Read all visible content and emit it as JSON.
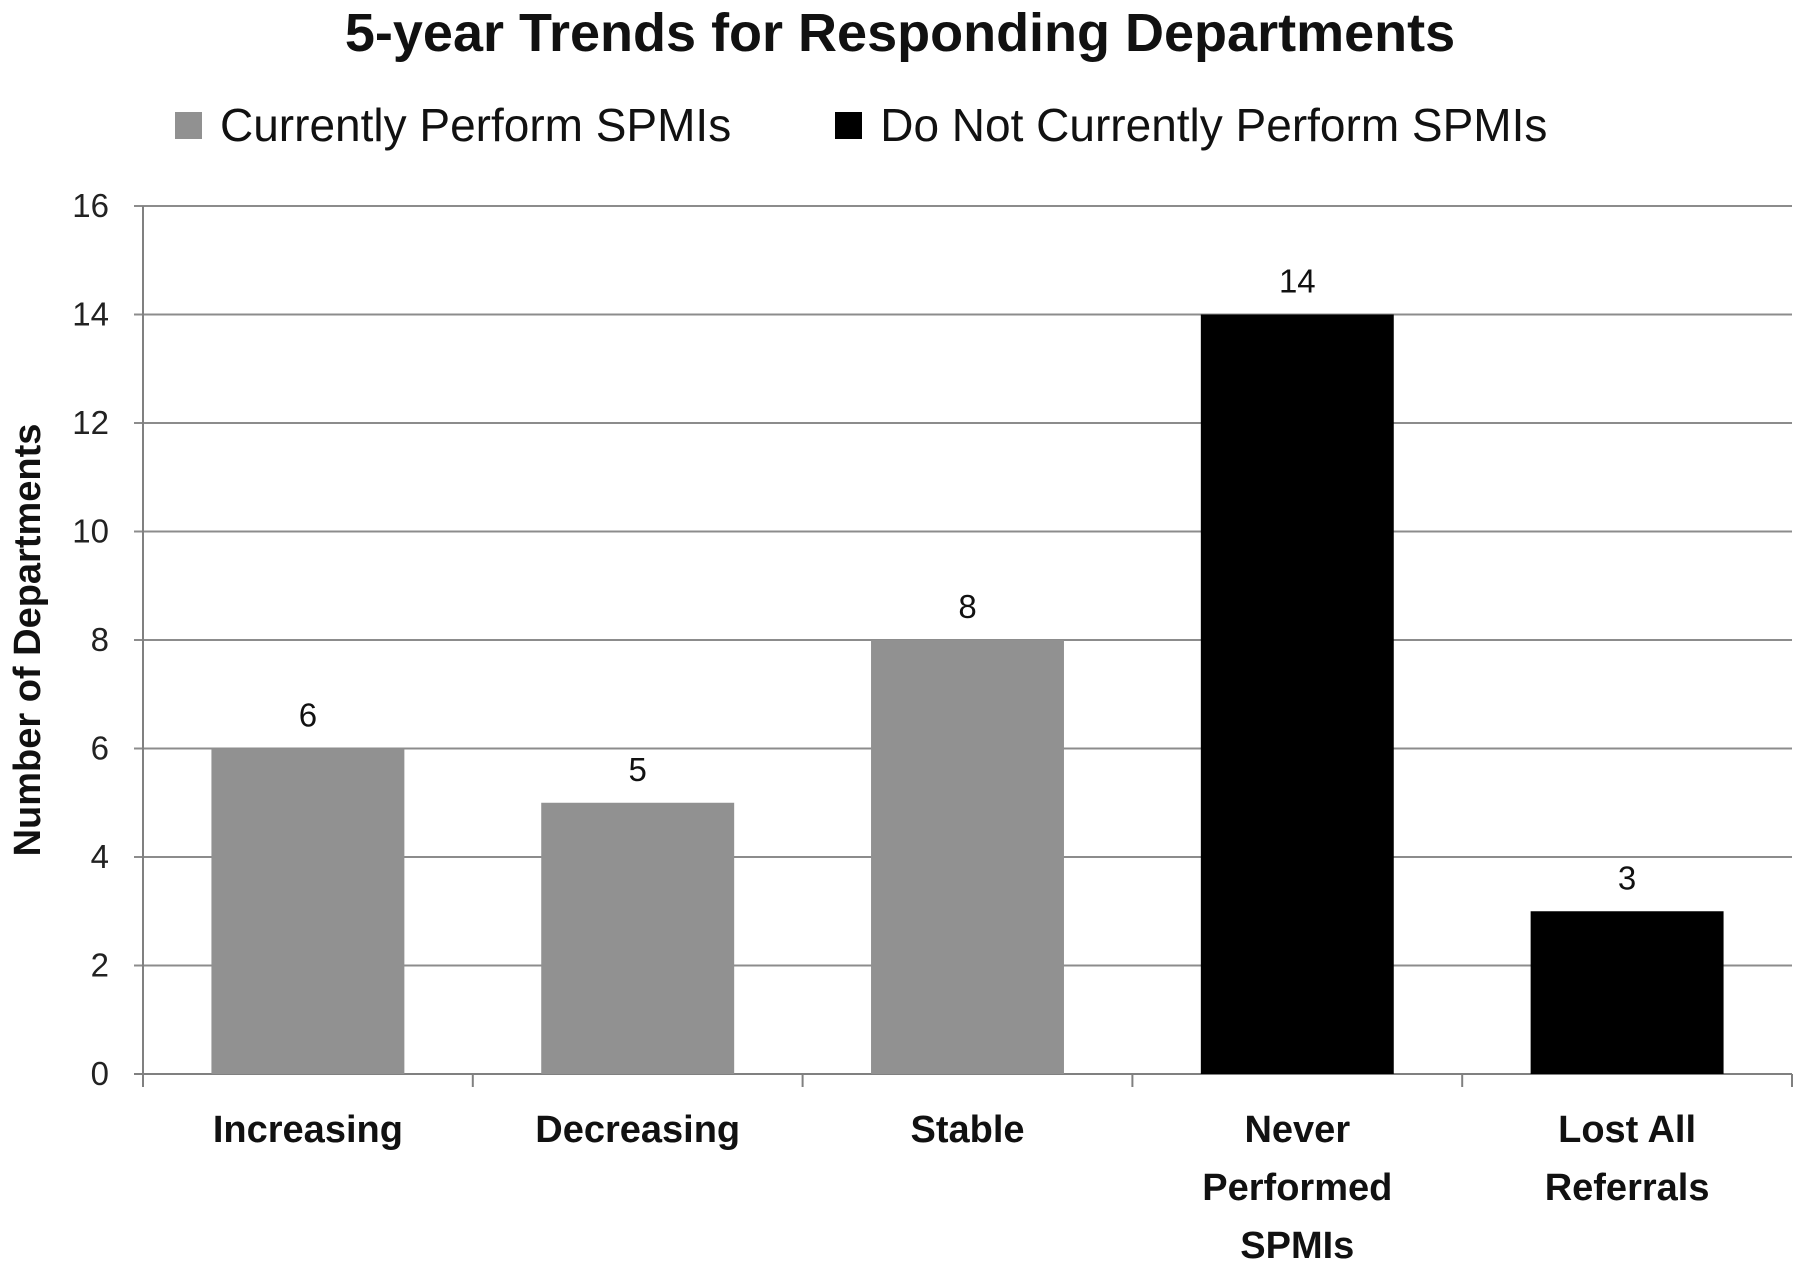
{
  "chart_data": {
    "type": "bar",
    "title": "5-year Trends for Responding Departments",
    "xlabel": "",
    "ylabel": "Number of Departments",
    "ylim": [
      0,
      16
    ],
    "yticks": [
      0,
      2,
      4,
      6,
      8,
      10,
      12,
      14,
      16
    ],
    "grid": true,
    "legend_position": "top",
    "categories": [
      [
        "Increasing"
      ],
      [
        "Decreasing"
      ],
      [
        "Stable"
      ],
      [
        "Never",
        "Performed",
        "SPMIs"
      ],
      [
        "Lost All",
        "Referrals"
      ]
    ],
    "values": [
      6,
      5,
      8,
      14,
      3
    ],
    "series": [
      {
        "name": "Currently Perform SPMIs",
        "color": "#919191",
        "values": [
          6,
          5,
          8,
          null,
          null
        ]
      },
      {
        "name": "Do Not Currently Perform SPMIs",
        "color": "#000000",
        "values": [
          null,
          null,
          null,
          14,
          3
        ]
      }
    ]
  }
}
